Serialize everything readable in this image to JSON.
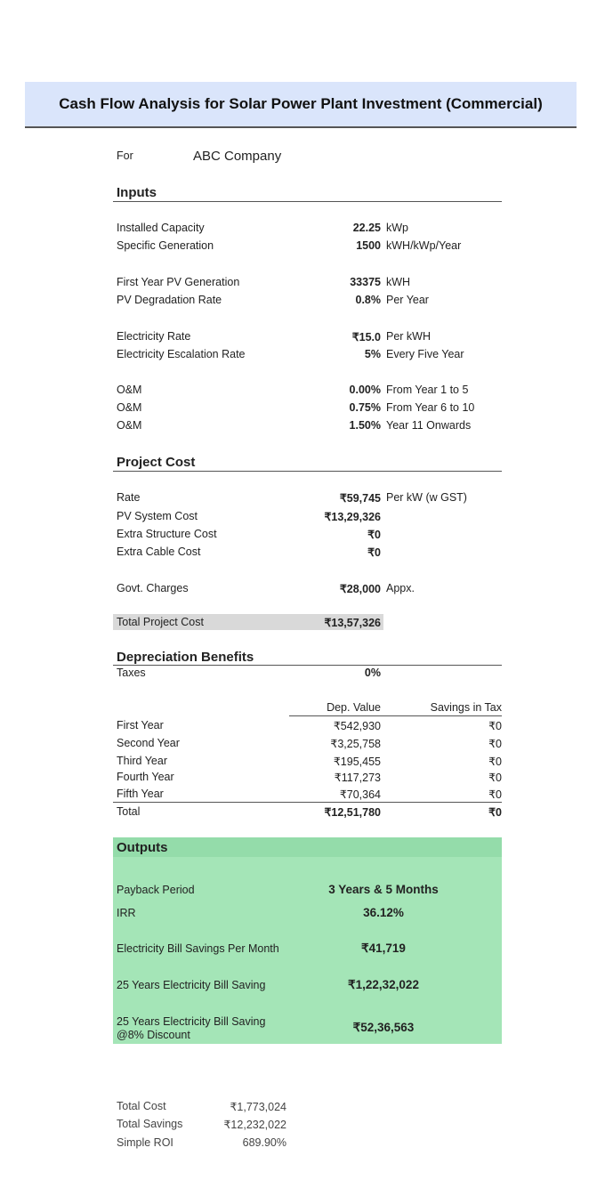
{
  "title": "Cash Flow Analysis for Solar Power Plant Investment (Commercial)",
  "for_label": "For",
  "company": "ABC Company",
  "inputs": {
    "heading": "Inputs",
    "rows": [
      {
        "label": "Installed Capacity",
        "value": "22.25",
        "unit": "kWp"
      },
      {
        "label": "Specific Generation",
        "value": "1500",
        "unit": "kWH/kWp/Year"
      },
      {
        "label": "First Year PV Generation",
        "value": "33375",
        "unit": "kWH"
      },
      {
        "label": "PV Degradation Rate",
        "value": "0.8%",
        "unit": "Per Year"
      },
      {
        "label": "Electricity Rate",
        "value": "₹15.0",
        "unit": "Per kWH"
      },
      {
        "label": "Electricity Escalation Rate",
        "value": "5%",
        "unit": "Every Five Year"
      },
      {
        "label": "O&M",
        "value": "0.00%",
        "unit": "From Year 1 to 5"
      },
      {
        "label": "O&M",
        "value": "0.75%",
        "unit": "From Year 6 to 10"
      },
      {
        "label": "O&M",
        "value": "1.50%",
        "unit": "Year 11 Onwards"
      }
    ]
  },
  "project_cost": {
    "heading": "Project Cost",
    "rows": [
      {
        "label": "Rate",
        "value": "₹59,745",
        "unit": "Per kW (w GST)"
      },
      {
        "label": "PV System Cost",
        "value": "₹13,29,326"
      },
      {
        "label": "Extra Structure Cost",
        "value": "₹0"
      },
      {
        "label": "Extra Cable Cost",
        "value": "₹0"
      },
      {
        "label": "Govt. Charges",
        "value": "₹28,000",
        "unit": "Appx."
      }
    ],
    "total_label": "Total Project Cost",
    "total_value": "₹13,57,326"
  },
  "depreciation": {
    "heading": "Depreciation Benefits",
    "taxes_label": "Taxes",
    "taxes_value": "0%",
    "col_dep": "Dep. Value",
    "col_savings": "Savings in Tax",
    "rows": [
      {
        "label": "First Year",
        "dep": "₹542,930",
        "savings": "₹0"
      },
      {
        "label": "Second Year",
        "dep": "₹3,25,758",
        "savings": "₹0"
      },
      {
        "label": "Third Year",
        "dep": "₹195,455",
        "savings": "₹0"
      },
      {
        "label": "Fourth Year",
        "dep": "₹117,273",
        "savings": "₹0"
      },
      {
        "label": "Fifth Year",
        "dep": "₹70,364",
        "savings": "₹0"
      }
    ],
    "total_label": "Total",
    "total_dep": "₹12,51,780",
    "total_savings": "₹0"
  },
  "outputs": {
    "heading": "Outputs",
    "rows": [
      {
        "label": "Payback Period",
        "value": "3 Years & 5 Months"
      },
      {
        "label": "IRR",
        "value": "36.12%"
      },
      {
        "label": "Electricity Bill Savings Per Month",
        "value": "₹41,719"
      },
      {
        "label": "25 Years Electricity Bill Saving",
        "value": "₹1,22,32,022"
      },
      {
        "label": "25 Years Electricity Bill Saving",
        "label2": "@8% Discount",
        "value": "₹52,36,563"
      }
    ]
  },
  "summary": [
    {
      "label": "Total Cost",
      "value": "₹1,773,024"
    },
    {
      "label": "Total Savings",
      "value": "₹12,232,022"
    },
    {
      "label": "Simple ROI",
      "value": "689.90%"
    }
  ],
  "colors": {
    "title_band": "#dae5fb",
    "outputs_bg": "#a4e5b7",
    "total_row_bg": "#d9d9d9"
  }
}
